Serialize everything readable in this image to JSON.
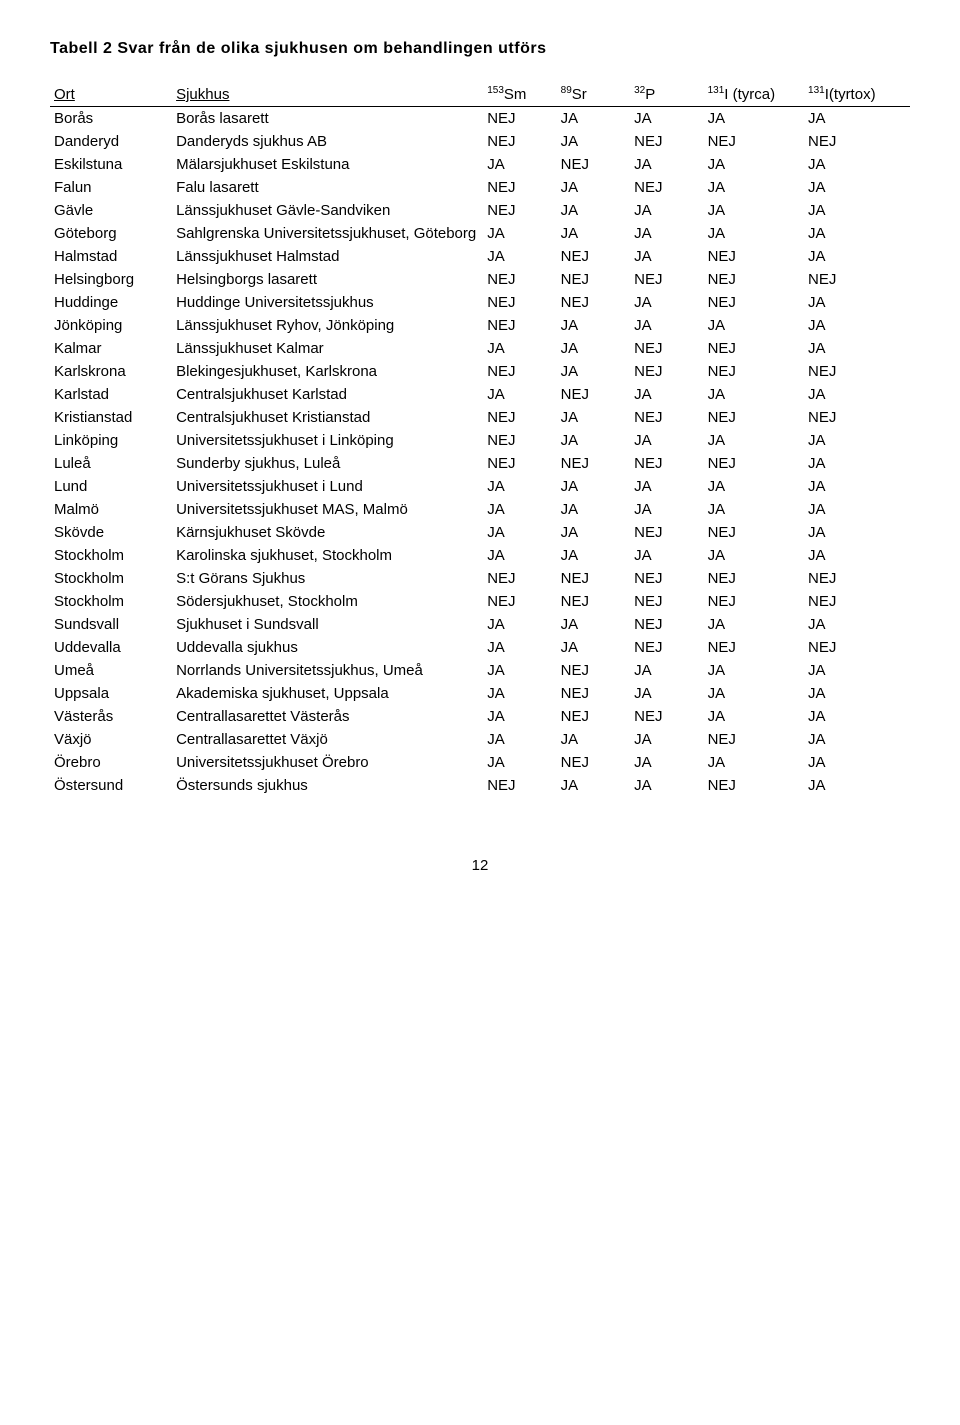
{
  "title": "Tabell 2 Svar från de olika sjukhusen om behandlingen utförs",
  "headers": {
    "ort": "Ort",
    "sjukhus": "Sjukhus",
    "c1_sup": "153",
    "c1_txt": "Sm",
    "c2_sup": "89",
    "c2_txt": "Sr",
    "c3_sup": "32",
    "c3_txt": "P",
    "c4_sup": "131",
    "c4_txt": "I (tyrca)",
    "c5_sup": "131",
    "c5_txt": "I(tyrtox)"
  },
  "rows": [
    {
      "ort": "Borås",
      "sjukhus": "Borås lasarett",
      "v": [
        "NEJ",
        "JA",
        "JA",
        "JA",
        "JA"
      ]
    },
    {
      "ort": "Danderyd",
      "sjukhus": "Danderyds sjukhus AB",
      "v": [
        "NEJ",
        "JA",
        "NEJ",
        "NEJ",
        "NEJ"
      ]
    },
    {
      "ort": "Eskilstuna",
      "sjukhus": "Mälarsjukhuset Eskilstuna",
      "v": [
        "JA",
        "NEJ",
        "JA",
        "JA",
        "JA"
      ]
    },
    {
      "ort": "Falun",
      "sjukhus": "Falu lasarett",
      "v": [
        "NEJ",
        "JA",
        "NEJ",
        "JA",
        "JA"
      ]
    },
    {
      "ort": "Gävle",
      "sjukhus": "Länssjukhuset Gävle-Sandviken",
      "v": [
        "NEJ",
        "JA",
        "JA",
        "JA",
        "JA"
      ]
    },
    {
      "ort": "Göteborg",
      "sjukhus": "Sahlgrenska Universitetssjukhuset, Göteborg",
      "v": [
        "JA",
        "JA",
        "JA",
        "JA",
        "JA"
      ]
    },
    {
      "ort": "Halmstad",
      "sjukhus": "Länssjukhuset Halmstad",
      "v": [
        "JA",
        "NEJ",
        "JA",
        "NEJ",
        "JA"
      ]
    },
    {
      "ort": "Helsingborg",
      "sjukhus": "Helsingborgs lasarett",
      "v": [
        "NEJ",
        "NEJ",
        "NEJ",
        "NEJ",
        "NEJ"
      ]
    },
    {
      "ort": "Huddinge",
      "sjukhus": "Huddinge Universitetssjukhus",
      "v": [
        "NEJ",
        "NEJ",
        "JA",
        "NEJ",
        "JA"
      ]
    },
    {
      "ort": "Jönköping",
      "sjukhus": "Länssjukhuset Ryhov, Jönköping",
      "v": [
        "NEJ",
        "JA",
        "JA",
        "JA",
        "JA"
      ]
    },
    {
      "ort": "Kalmar",
      "sjukhus": "Länssjukhuset Kalmar",
      "v": [
        "JA",
        "JA",
        "NEJ",
        "NEJ",
        "JA"
      ]
    },
    {
      "ort": "Karlskrona",
      "sjukhus": "Blekingesjukhuset, Karlskrona",
      "v": [
        "NEJ",
        "JA",
        "NEJ",
        "NEJ",
        "NEJ"
      ]
    },
    {
      "ort": "Karlstad",
      "sjukhus": "Centralsjukhuset Karlstad",
      "v": [
        "JA",
        "NEJ",
        "JA",
        "JA",
        "JA"
      ]
    },
    {
      "ort": "Kristianstad",
      "sjukhus": "Centralsjukhuset Kristianstad",
      "v": [
        "NEJ",
        "JA",
        "NEJ",
        "NEJ",
        "NEJ"
      ]
    },
    {
      "ort": "Linköping",
      "sjukhus": "Universitetssjukhuset i Linköping",
      "v": [
        "NEJ",
        "JA",
        "JA",
        "JA",
        "JA"
      ]
    },
    {
      "ort": "Luleå",
      "sjukhus": "Sunderby sjukhus, Luleå",
      "v": [
        "NEJ",
        "NEJ",
        "NEJ",
        "NEJ",
        "JA"
      ]
    },
    {
      "ort": "Lund",
      "sjukhus": "Universitetssjukhuset i Lund",
      "v": [
        "JA",
        "JA",
        "JA",
        "JA",
        "JA"
      ]
    },
    {
      "ort": "Malmö",
      "sjukhus": "Universitetssjukhuset MAS, Malmö",
      "v": [
        "JA",
        "JA",
        "JA",
        "JA",
        "JA"
      ]
    },
    {
      "ort": "Skövde",
      "sjukhus": "Kärnsjukhuset Skövde",
      "v": [
        "JA",
        "JA",
        "NEJ",
        "NEJ",
        "JA"
      ]
    },
    {
      "ort": "Stockholm",
      "sjukhus": "Karolinska sjukhuset, Stockholm",
      "v": [
        "JA",
        "JA",
        "JA",
        "JA",
        "JA"
      ]
    },
    {
      "ort": "Stockholm",
      "sjukhus": "S:t Görans Sjukhus",
      "v": [
        "NEJ",
        "NEJ",
        "NEJ",
        "NEJ",
        "NEJ"
      ]
    },
    {
      "ort": "Stockholm",
      "sjukhus": "Södersjukhuset, Stockholm",
      "v": [
        "NEJ",
        "NEJ",
        "NEJ",
        "NEJ",
        "NEJ"
      ]
    },
    {
      "ort": "Sundsvall",
      "sjukhus": "Sjukhuset i Sundsvall",
      "v": [
        "JA",
        "JA",
        "NEJ",
        "JA",
        "JA"
      ]
    },
    {
      "ort": "Uddevalla",
      "sjukhus": "Uddevalla sjukhus",
      "v": [
        "JA",
        "JA",
        "NEJ",
        "NEJ",
        "NEJ"
      ]
    },
    {
      "ort": "Umeå",
      "sjukhus": "Norrlands Universitetssjukhus, Umeå",
      "v": [
        "JA",
        "NEJ",
        "JA",
        "JA",
        "JA"
      ]
    },
    {
      "ort": "Uppsala",
      "sjukhus": "Akademiska sjukhuset, Uppsala",
      "v": [
        "JA",
        "NEJ",
        "JA",
        "JA",
        "JA"
      ]
    },
    {
      "ort": "Västerås",
      "sjukhus": "Centrallasarettet Västerås",
      "v": [
        "JA",
        "NEJ",
        "NEJ",
        "JA",
        "JA"
      ]
    },
    {
      "ort": "Växjö",
      "sjukhus": "Centrallasarettet Växjö",
      "v": [
        "JA",
        "JA",
        "JA",
        "NEJ",
        "JA"
      ]
    },
    {
      "ort": "Örebro",
      "sjukhus": "Universitetssjukhuset Örebro",
      "v": [
        "JA",
        "NEJ",
        "JA",
        "JA",
        "JA"
      ]
    },
    {
      "ort": "Östersund",
      "sjukhus": "Östersunds sjukhus",
      "v": [
        "NEJ",
        "JA",
        "JA",
        "NEJ",
        "JA"
      ]
    }
  ],
  "page_number": "12"
}
